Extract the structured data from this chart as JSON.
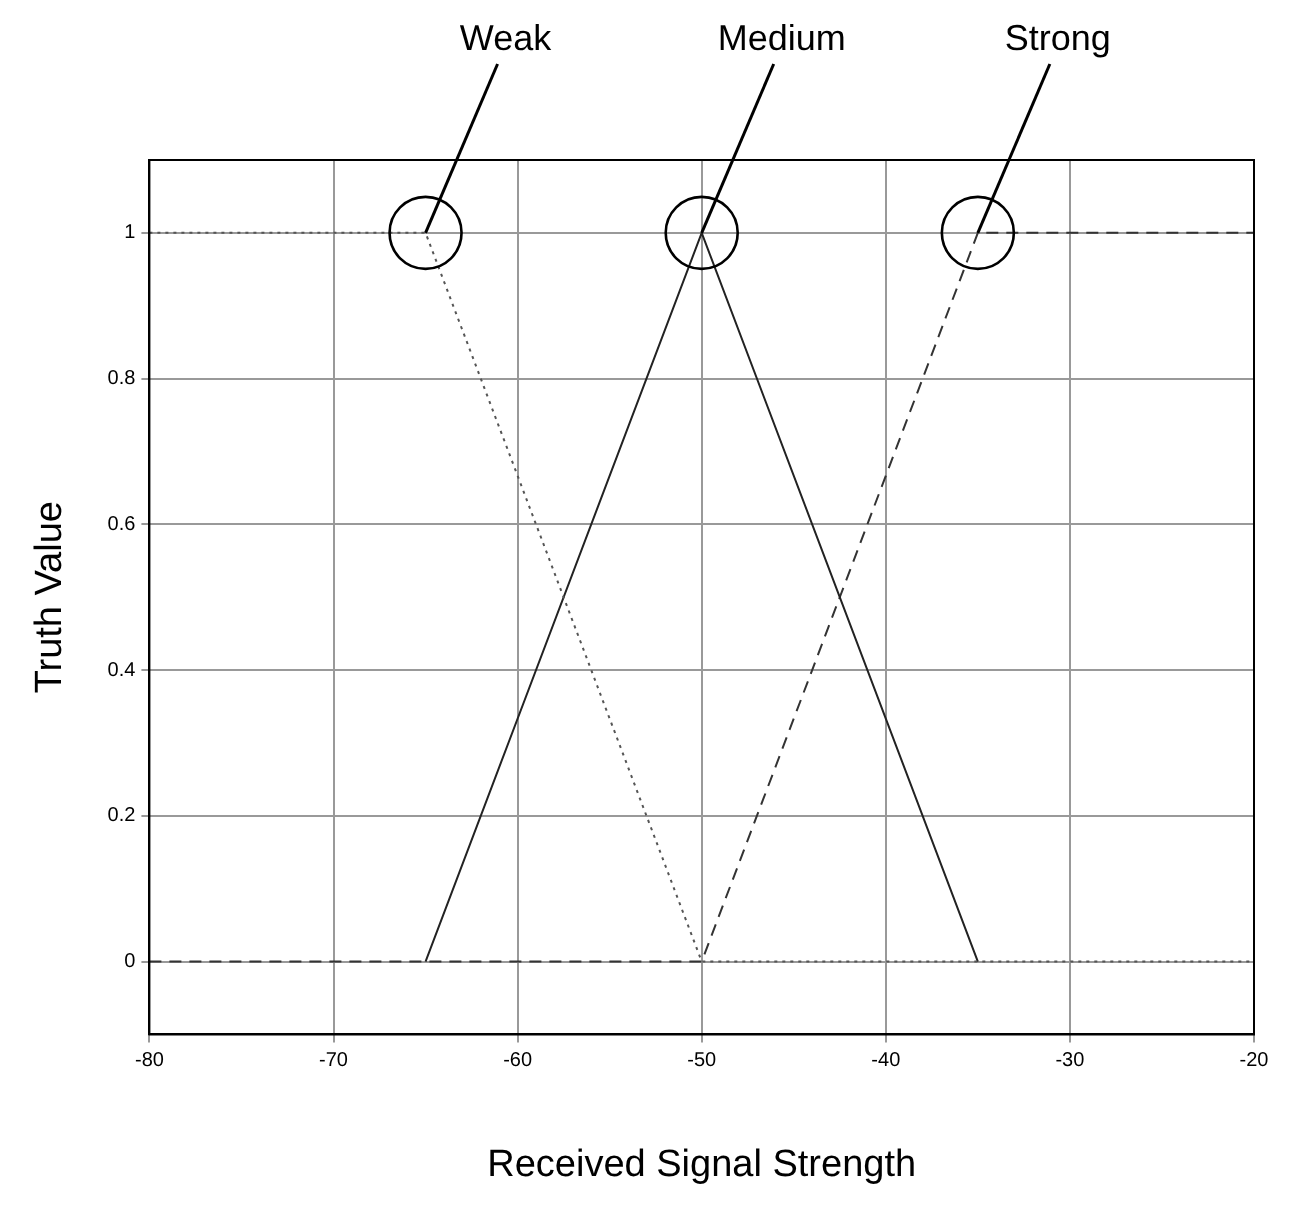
{
  "chart_data": {
    "type": "line",
    "xlabel": "Received Signal Strength",
    "ylabel": "Truth Value",
    "xlim": [
      -80,
      -20
    ],
    "xticks": [
      -80,
      -70,
      -60,
      -50,
      -40,
      -30,
      -20
    ],
    "ylim": [
      -0.1,
      1.1
    ],
    "yticks": [
      0,
      0.2,
      0.4,
      0.6,
      0.8,
      1
    ],
    "grid": true,
    "legend": false,
    "marker": "none",
    "series": [
      {
        "color": "#555555",
        "line_style": "dotted",
        "x": [
          -80,
          -65,
          -50,
          -20
        ],
        "values": [
          1,
          1,
          0,
          0
        ]
      },
      {
        "color": "#222222",
        "line_style": "solid",
        "x": [
          -65,
          -50,
          -35
        ],
        "values": [
          0,
          1,
          0
        ]
      },
      {
        "color": "#333333",
        "line_style": "dashed",
        "x": [
          -80,
          -50,
          -35,
          -20
        ],
        "values": [
          0,
          0,
          1,
          1
        ]
      }
    ],
    "annotations": [
      {
        "text": "Weak",
        "x": -65,
        "y": 1
      },
      {
        "text": "Medium",
        "x": -50,
        "y": 1
      },
      {
        "text": "Strong",
        "x": -35,
        "y": 1
      }
    ]
  }
}
